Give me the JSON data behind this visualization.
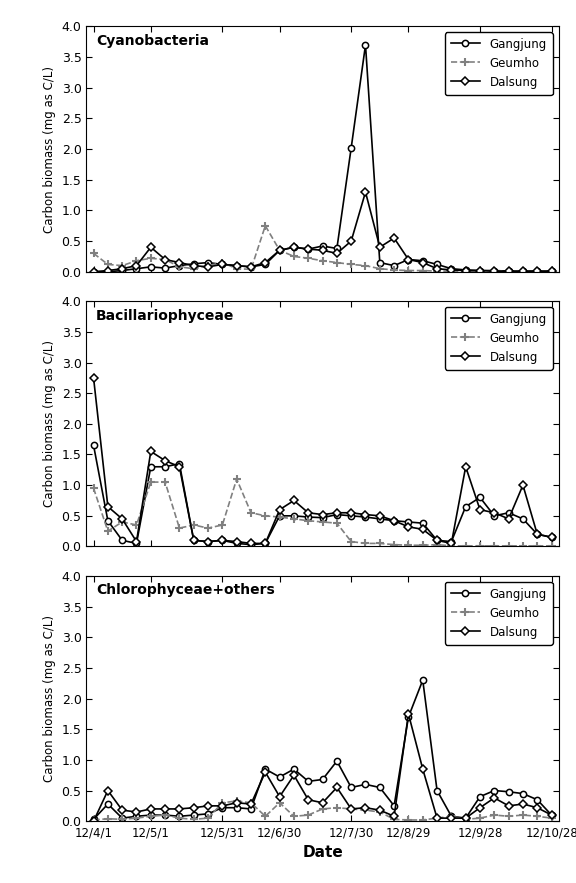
{
  "x_labels": [
    "12/4/1",
    "12/5/1",
    "12/5/31",
    "12/6/30",
    "12/7/30",
    "12/8/29",
    "12/9/28",
    "12/10/28"
  ],
  "n_points": 33,
  "xtick_positions": [
    0,
    4,
    9,
    13,
    18,
    22,
    27,
    32
  ],
  "panels": [
    {
      "title": "Cyanobacteria",
      "ylim": [
        0,
        4.0
      ],
      "yticks": [
        0.0,
        0.5,
        1.0,
        1.5,
        2.0,
        2.5,
        3.0,
        3.5,
        4.0
      ],
      "gangjung": [
        0.0,
        0.0,
        0.02,
        0.05,
        0.08,
        0.06,
        0.1,
        0.13,
        0.15,
        0.12,
        0.1,
        0.08,
        0.12,
        0.35,
        0.4,
        0.37,
        0.42,
        0.38,
        2.02,
        3.7,
        0.15,
        0.1,
        0.2,
        0.18,
        0.12,
        0.05,
        0.03,
        0.02,
        0.02,
        0.01,
        0.01,
        0.01,
        0.01
      ],
      "geumho": [
        0.3,
        0.12,
        0.1,
        0.18,
        0.22,
        0.2,
        0.08,
        0.05,
        0.1,
        0.15,
        0.05,
        0.04,
        0.75,
        0.35,
        0.25,
        0.22,
        0.18,
        0.15,
        0.12,
        0.1,
        0.05,
        0.03,
        0.02,
        0.02,
        0.01,
        0.01,
        0.01,
        0.01,
        0.01,
        0.01,
        0.01,
        0.01,
        0.01
      ],
      "dalsung": [
        0.0,
        0.02,
        0.05,
        0.1,
        0.4,
        0.2,
        0.15,
        0.1,
        0.08,
        0.12,
        0.1,
        0.08,
        0.15,
        0.35,
        0.4,
        0.37,
        0.35,
        0.3,
        0.5,
        1.3,
        0.4,
        0.55,
        0.2,
        0.15,
        0.05,
        0.03,
        0.02,
        0.02,
        0.01,
        0.01,
        0.01,
        0.01,
        0.01
      ]
    },
    {
      "title": "Bacillariophyceae",
      "ylim": [
        0,
        4.0
      ],
      "yticks": [
        0.0,
        0.5,
        1.0,
        1.5,
        2.0,
        2.5,
        3.0,
        3.5,
        4.0
      ],
      "gangjung": [
        1.65,
        0.42,
        0.1,
        0.05,
        1.3,
        1.3,
        1.35,
        0.1,
        0.08,
        0.1,
        0.05,
        0.03,
        0.05,
        0.5,
        0.5,
        0.48,
        0.47,
        0.52,
        0.5,
        0.48,
        0.45,
        0.42,
        0.4,
        0.38,
        0.1,
        0.08,
        0.65,
        0.8,
        0.5,
        0.55,
        0.45,
        0.2,
        0.15
      ],
      "geumho": [
        0.95,
        0.25,
        0.4,
        0.35,
        1.05,
        1.05,
        0.3,
        0.35,
        0.3,
        0.35,
        1.1,
        0.55,
        0.5,
        0.48,
        0.45,
        0.42,
        0.4,
        0.38,
        0.08,
        0.05,
        0.05,
        0.03,
        0.02,
        0.02,
        0.03,
        0.01,
        0.01,
        0.01,
        0.01,
        0.01,
        0.01,
        0.01,
        0.01
      ],
      "dalsung": [
        2.75,
        0.65,
        0.45,
        0.08,
        1.55,
        1.4,
        1.3,
        0.1,
        0.08,
        0.1,
        0.08,
        0.05,
        0.05,
        0.6,
        0.75,
        0.55,
        0.52,
        0.55,
        0.55,
        0.52,
        0.5,
        0.42,
        0.32,
        0.28,
        0.1,
        0.05,
        1.3,
        0.6,
        0.55,
        0.45,
        1.0,
        0.2,
        0.15
      ]
    },
    {
      "title": "Chlorophyceae+others",
      "ylim": [
        0,
        4.0
      ],
      "yticks": [
        0.0,
        0.5,
        1.0,
        1.5,
        2.0,
        2.5,
        3.0,
        3.5,
        4.0
      ],
      "gangjung": [
        0.03,
        0.28,
        0.05,
        0.08,
        0.1,
        0.1,
        0.08,
        0.1,
        0.12,
        0.22,
        0.22,
        0.2,
        0.85,
        0.72,
        0.85,
        0.65,
        0.68,
        0.98,
        0.55,
        0.6,
        0.55,
        0.25,
        1.7,
        2.3,
        0.5,
        0.08,
        0.05,
        0.4,
        0.5,
        0.48,
        0.45,
        0.35,
        0.1
      ],
      "geumho": [
        0.02,
        0.04,
        0.03,
        0.05,
        0.08,
        0.1,
        0.05,
        0.03,
        0.05,
        0.3,
        0.33,
        0.3,
        0.08,
        0.3,
        0.08,
        0.1,
        0.2,
        0.22,
        0.2,
        0.18,
        0.15,
        0.03,
        0.02,
        0.02,
        0.05,
        0.08,
        0.03,
        0.05,
        0.1,
        0.08,
        0.1,
        0.08,
        0.05
      ],
      "dalsung": [
        0.0,
        0.5,
        0.18,
        0.15,
        0.2,
        0.2,
        0.2,
        0.22,
        0.25,
        0.25,
        0.3,
        0.28,
        0.8,
        0.4,
        0.75,
        0.35,
        0.3,
        0.55,
        0.2,
        0.22,
        0.18,
        0.08,
        1.75,
        0.85,
        0.05,
        0.05,
        0.05,
        0.22,
        0.38,
        0.25,
        0.28,
        0.22,
        0.1
      ]
    }
  ],
  "ylabel": "Carbon biomass (mg as C/L)",
  "xlabel": "Date",
  "gangjung_color": "#000000",
  "geumho_color": "#808080",
  "dalsung_color": "#000000",
  "legend_labels": [
    "Gangjung",
    "Geumho",
    "Dalsung"
  ]
}
